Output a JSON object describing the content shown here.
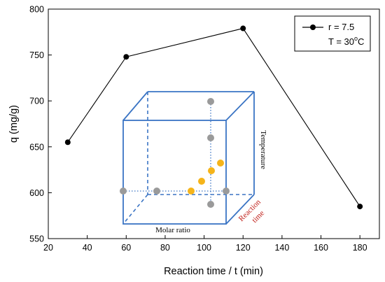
{
  "chart_data": {
    "type": "line",
    "xlabel": "Reaction time / t (min)",
    "ylabel": "q (mg/g)",
    "xlim": [
      20,
      190
    ],
    "ylim": [
      550,
      800
    ],
    "xticks": [
      20,
      40,
      60,
      80,
      100,
      120,
      140,
      160,
      180
    ],
    "yticks": [
      550,
      600,
      650,
      700,
      750,
      800
    ],
    "grid": false,
    "legend_position": "top-right",
    "series": [
      {
        "x": [
          30,
          60,
          120,
          180
        ],
        "y": [
          655,
          748,
          779,
          585
        ],
        "color": "#000000",
        "marker": "filled-circle"
      }
    ],
    "legend": {
      "line1": "r = 7.5",
      "line2_prefix": "T = 30",
      "line2_sup": "o",
      "line2_suffix": "C"
    },
    "inset": {
      "description_labels": {
        "x_axis": "Molar ratio",
        "y_axis": "Temperature",
        "z_axis_line1": "Reaction",
        "z_axis_line2": "time"
      },
      "box_color": "#3a74c4",
      "gray_point_color": "#9a9a9a",
      "highlight_point_color": "#f5b41a",
      "label_red_color": "#c0201a"
    }
  }
}
